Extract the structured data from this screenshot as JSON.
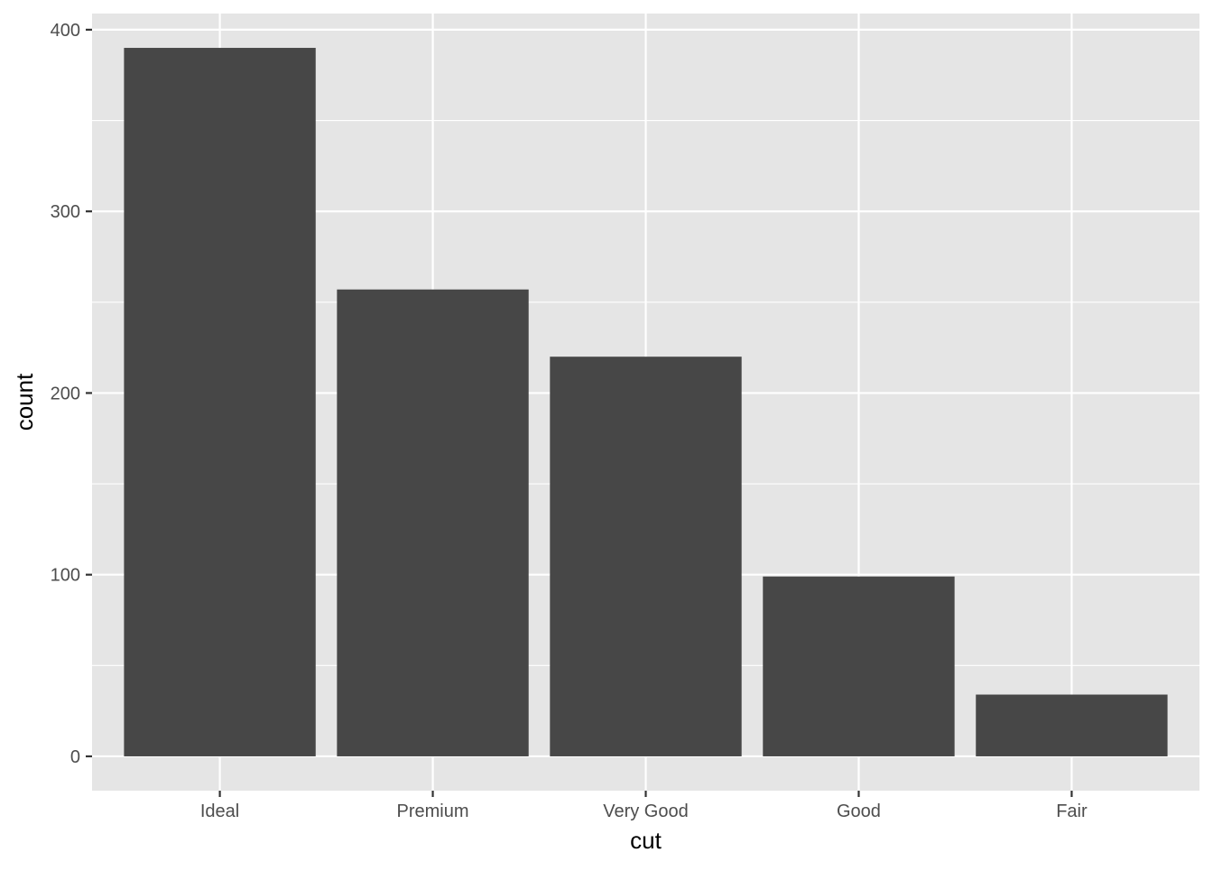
{
  "chart_data": {
    "type": "bar",
    "categories": [
      "Ideal",
      "Premium",
      "Very Good",
      "Good",
      "Fair"
    ],
    "values": [
      390,
      257,
      220,
      99,
      34
    ],
    "xlabel": "cut",
    "ylabel": "count",
    "ylim": [
      -18.9,
      408.9
    ],
    "yticks": [
      0,
      100,
      200,
      300,
      400
    ],
    "ytick_labels": [
      "0",
      "100",
      "200",
      "300",
      "400"
    ],
    "grid": true,
    "legend": "none",
    "colors": {
      "bar": "#474747",
      "panel": "#e5e5e5",
      "grid": "#ffffff",
      "tick_text": "#4d4d4d",
      "axis_title": "#000000"
    }
  }
}
